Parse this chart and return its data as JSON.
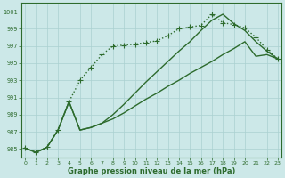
{
  "bg_color": "#cce8e8",
  "grid_color": "#aad0d0",
  "line_color": "#2d6b2d",
  "markersize": 2.8,
  "linewidth": 1.0,
  "xlabel": "Graphe pression niveau de la mer (hPa)",
  "xlim": [
    -0.3,
    23.3
  ],
  "ylim": [
    984,
    1002
  ],
  "yticks": [
    985,
    987,
    989,
    991,
    993,
    995,
    997,
    999,
    1001
  ],
  "xticks": [
    0,
    1,
    2,
    3,
    4,
    5,
    6,
    7,
    8,
    9,
    10,
    11,
    12,
    13,
    14,
    15,
    16,
    17,
    18,
    19,
    20,
    21,
    22,
    23
  ],
  "series1_y": [
    985.1,
    984.6,
    985.2,
    987.2,
    990.5,
    993.0,
    994.5,
    996.0,
    997.0,
    997.1,
    997.2,
    997.4,
    997.6,
    998.2,
    999.0,
    999.2,
    999.4,
    1000.7,
    999.7,
    999.5,
    999.1,
    998.0,
    996.6,
    995.5
  ],
  "series2_y": [
    985.1,
    984.6,
    985.2,
    987.2,
    990.5,
    987.2,
    987.5,
    988.0,
    989.0,
    990.2,
    991.5,
    992.8,
    994.0,
    995.2,
    996.4,
    997.5,
    998.8,
    1000.0,
    1000.7,
    999.6,
    998.8,
    997.5,
    996.4,
    995.5
  ],
  "series3_y": [
    985.1,
    984.6,
    985.2,
    987.2,
    990.5,
    987.2,
    987.5,
    988.0,
    988.5,
    989.2,
    990.0,
    990.8,
    991.5,
    992.3,
    993.0,
    993.8,
    994.5,
    995.2,
    996.0,
    996.7,
    997.5,
    995.8,
    996.0,
    995.5
  ]
}
